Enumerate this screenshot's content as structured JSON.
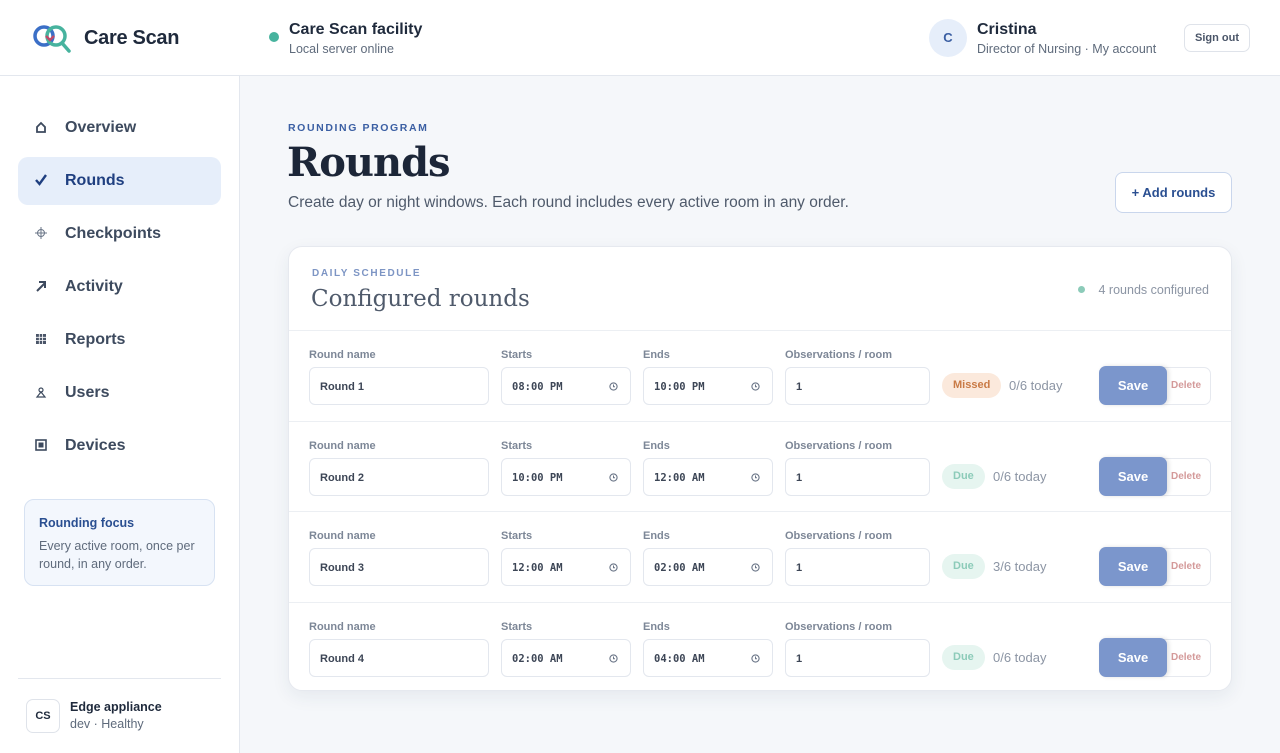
{
  "header": {
    "brand": "Care Scan",
    "facility": "Care Scan facility",
    "server_status": "Local server online",
    "avatar_initial": "C",
    "user_name": "Cristina",
    "user_role": "Director of Nursing · My account",
    "sign_out": "Sign out"
  },
  "sidebar": {
    "nav": [
      {
        "label": "Overview"
      },
      {
        "label": "Rounds",
        "active": true
      },
      {
        "label": "Checkpoints"
      },
      {
        "label": "Activity"
      },
      {
        "label": "Reports"
      },
      {
        "label": "Users"
      },
      {
        "label": "Devices"
      }
    ],
    "focus": {
      "title": "Rounding focus",
      "text": "Every active room, once per round, in any order."
    },
    "footer": {
      "badge": "CS",
      "name": "Edge appliance",
      "status": "dev · Healthy"
    }
  },
  "main": {
    "eyebrow": "ROUNDING PROGRAM",
    "title": "Rounds",
    "subtitle": "Create day or night windows. Each round includes every active room in any order.",
    "add_button": "+ Add rounds"
  },
  "card": {
    "eyebrow": "DAILY SCHEDULE",
    "title": "Configured rounds",
    "summary": "4 rounds configured",
    "columns": {
      "name": "Round name",
      "starts": "Starts",
      "ends": "Ends",
      "observations": "Observations / room"
    },
    "actions": {
      "save": "Save",
      "delete": "Delete"
    },
    "rows": [
      {
        "name": "Round 1",
        "starts": "08:00 PM",
        "ends": "10:00 PM",
        "observations": 1,
        "status": "Missed",
        "status_color": "#c97a45",
        "status_bg": "#fbe9dc",
        "progress": "0/6 today"
      },
      {
        "name": "Round 2",
        "starts": "10:00 PM",
        "ends": "12:00 AM",
        "observations": 1,
        "status": "Due",
        "status_color": "#8ccbb9",
        "status_bg": "#e6f5f0",
        "progress": "0/6 today"
      },
      {
        "name": "Round 3",
        "starts": "12:00 AM",
        "ends": "02:00 AM",
        "observations": 1,
        "status": "Due",
        "status_color": "#8ccbb9",
        "status_bg": "#e6f5f0",
        "progress": "3/6 today"
      },
      {
        "name": "Round 4",
        "starts": "02:00 AM",
        "ends": "04:00 AM",
        "observations": 1,
        "status": "Due",
        "status_color": "#8ccbb9",
        "status_bg": "#e6f5f0",
        "progress": "0/6 today"
      }
    ]
  }
}
